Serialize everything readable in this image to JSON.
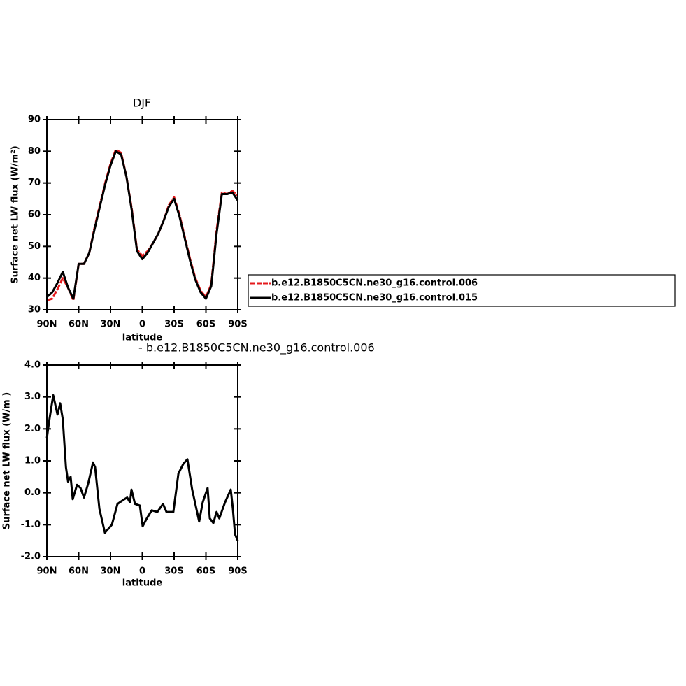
{
  "chart_data": [
    {
      "type": "line",
      "title": "DJF",
      "xlabel": "latitude",
      "ylabel": "Surface net LW flux (W/m²)",
      "x": [
        90,
        85,
        80,
        75,
        70,
        65,
        60,
        55,
        50,
        45,
        40,
        35,
        30,
        25,
        20,
        15,
        10,
        5,
        0,
        -5,
        -10,
        -15,
        -20,
        -25,
        -30,
        -35,
        -40,
        -45,
        -50,
        -55,
        -60,
        -65,
        -70,
        -75,
        -80,
        -85,
        -90
      ],
      "series": [
        {
          "name": "b.e12.B1850C5CN.ne30_g16.control.006",
          "color": "#e41a1c",
          "values": [
            33,
            33.5,
            36.5,
            40,
            37,
            33,
            44.5,
            44.5,
            48,
            56,
            63,
            70,
            76,
            80.5,
            79.5,
            72,
            62,
            49,
            47,
            48.5,
            51,
            54,
            58,
            63,
            65.5,
            60,
            53,
            46,
            40,
            36,
            34,
            38,
            55,
            67,
            66.5,
            67.5,
            66
          ]
        },
        {
          "name": "b.e12.B1850C5CN.ne30_g16.control.015",
          "color": "#000000",
          "values": [
            34,
            35.5,
            38.5,
            42,
            37,
            33.5,
            44.5,
            44.5,
            48,
            55.5,
            62.5,
            69.5,
            75.5,
            80,
            79,
            72,
            61.5,
            48.5,
            46,
            48,
            51,
            54,
            58,
            62.5,
            65,
            59.5,
            52.5,
            45.5,
            39.5,
            35.5,
            33.5,
            37.5,
            54,
            66.5,
            66.5,
            67,
            64.5
          ]
        }
      ],
      "xlim": [
        90,
        -90
      ],
      "xticks": [
        {
          "value": 90,
          "label": "90N"
        },
        {
          "value": 60,
          "label": "60N"
        },
        {
          "value": 30,
          "label": "30N"
        },
        0,
        {
          "value": -30,
          "label": "30S"
        },
        {
          "value": -60,
          "label": "60S"
        },
        {
          "value": -90,
          "label": "90S"
        }
      ],
      "ylim": [
        30,
        90
      ],
      "yticks": [
        30,
        40,
        50,
        60,
        70,
        80,
        90
      ]
    },
    {
      "type": "line",
      "title": "-  b.e12.B1850C5CN.ne30_g16.control.006",
      "xlabel": "latitude",
      "ylabel": "Surface net LW flux (W/m )",
      "x": [
        90,
        88,
        84,
        80,
        77.5,
        75,
        72,
        70,
        67.6,
        65.6,
        61.6,
        58.3,
        55,
        51,
        46.5,
        44.5,
        40.5,
        35.3,
        28.7,
        23.4,
        16.8,
        14.3,
        11.6,
        10.2,
        6.9,
        2.3,
        -0.3,
        -4.3,
        -8.9,
        -14.2,
        -19.5,
        -22.8,
        -29.3,
        -34,
        -38.6,
        -42.5,
        -47,
        -53.6,
        -57,
        -61.6,
        -63.6,
        -67,
        -70,
        -72.6,
        -78,
        -83.4,
        -85.4,
        -87.4,
        -90
      ],
      "series": [
        {
          "color": "#000000",
          "values": [
            1.7,
            2.2,
            3.05,
            2.45,
            2.8,
            2.3,
            0.8,
            0.35,
            0.5,
            -0.2,
            0.25,
            0.15,
            -0.15,
            0.3,
            0.95,
            0.8,
            -0.5,
            -1.25,
            -1.0,
            -0.35,
            -0.2,
            -0.15,
            -0.3,
            0.1,
            -0.35,
            -0.4,
            -1.05,
            -0.8,
            -0.55,
            -0.6,
            -0.35,
            -0.6,
            -0.6,
            0.6,
            0.9,
            1.05,
            0.1,
            -0.9,
            -0.3,
            0.15,
            -0.8,
            -0.95,
            -0.6,
            -0.8,
            -0.3,
            0.1,
            -0.5,
            -1.3,
            -1.5
          ]
        }
      ],
      "xlim": [
        90,
        -90
      ],
      "xticks": [
        {
          "value": 90,
          "label": "90N"
        },
        {
          "value": 60,
          "label": "60N"
        },
        {
          "value": 30,
          "label": "30N"
        },
        0,
        {
          "value": -30,
          "label": "30S"
        },
        {
          "value": -60,
          "label": "60S"
        },
        {
          "value": -90,
          "label": "90S"
        }
      ],
      "ylim": [
        -2,
        4
      ],
      "yticks": [
        {
          "value": -2,
          "label": "-2.0"
        },
        {
          "value": -1,
          "label": "-1.0"
        },
        {
          "value": 0,
          "label": "0.0"
        },
        {
          "value": 1,
          "label": "1.0"
        },
        {
          "value": 2,
          "label": "2.0"
        },
        {
          "value": 3,
          "label": "3.0"
        },
        {
          "value": 4,
          "label": "4.0"
        }
      ]
    }
  ]
}
